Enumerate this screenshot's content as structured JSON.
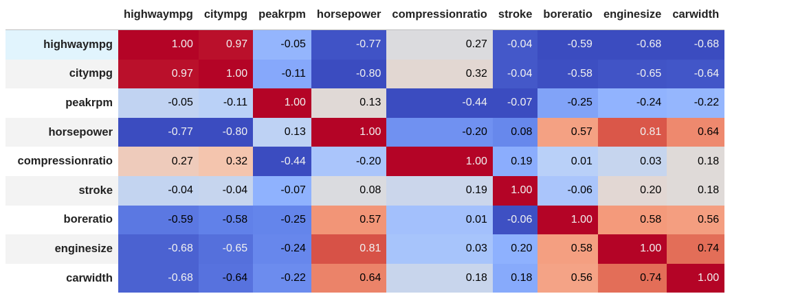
{
  "colormap": "coolwarm",
  "gradient_axis": "column",
  "highlight_row_color": "#e1f4fd",
  "columns": [
    "highwaympg",
    "citympg",
    "peakrpm",
    "horsepower",
    "compressionratio",
    "stroke",
    "boreratio",
    "enginesize",
    "carwidth"
  ],
  "rows": [
    {
      "label": "highwaympg",
      "values": [
        "1.00",
        "0.97",
        "-0.05",
        "-0.77",
        "0.27",
        "-0.04",
        "-0.59",
        "-0.68",
        "-0.68"
      ]
    },
    {
      "label": "citympg",
      "values": [
        "0.97",
        "1.00",
        "-0.11",
        "-0.80",
        "0.32",
        "-0.04",
        "-0.58",
        "-0.65",
        "-0.64"
      ]
    },
    {
      "label": "peakrpm",
      "values": [
        "-0.05",
        "-0.11",
        "1.00",
        "0.13",
        "-0.44",
        "-0.07",
        "-0.25",
        "-0.24",
        "-0.22"
      ]
    },
    {
      "label": "horsepower",
      "values": [
        "-0.77",
        "-0.80",
        "0.13",
        "1.00",
        "-0.20",
        "0.08",
        "0.57",
        "0.81",
        "0.64"
      ]
    },
    {
      "label": "compressionratio",
      "values": [
        "0.27",
        "0.32",
        "-0.44",
        "-0.20",
        "1.00",
        "0.19",
        "0.01",
        "0.03",
        "0.18"
      ]
    },
    {
      "label": "stroke",
      "values": [
        "-0.04",
        "-0.04",
        "-0.07",
        "0.08",
        "0.19",
        "1.00",
        "-0.06",
        "0.20",
        "0.18"
      ]
    },
    {
      "label": "boreratio",
      "values": [
        "-0.59",
        "-0.58",
        "-0.25",
        "0.57",
        "0.01",
        "-0.06",
        "1.00",
        "0.58",
        "0.56"
      ]
    },
    {
      "label": "enginesize",
      "values": [
        "-0.68",
        "-0.65",
        "-0.24",
        "0.81",
        "0.03",
        "0.20",
        "0.58",
        "1.00",
        "0.74"
      ]
    },
    {
      "label": "carwidth",
      "values": [
        "-0.68",
        "-0.64",
        "-0.22",
        "0.64",
        "0.18",
        "0.18",
        "0.56",
        "0.74",
        "1.00"
      ]
    }
  ]
}
